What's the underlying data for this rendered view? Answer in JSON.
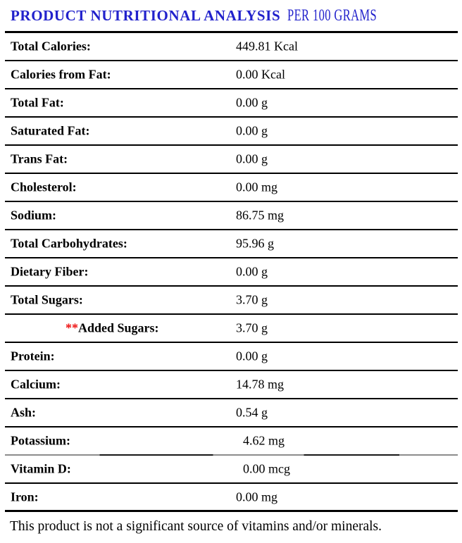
{
  "title": {
    "main": "PRODUCT NUTRITIONAL ANALYSIS",
    "suffix": "PER 100 GRAMS"
  },
  "colors": {
    "title_blue": "#2222cc",
    "asterisk_red": "#ee1111",
    "rule_black": "#000000",
    "rule_gray": "#8c8c8c"
  },
  "rows": [
    {
      "label": "Total Calories:",
      "value": "449.81 Kcal"
    },
    {
      "label": "Calories from Fat:",
      "value": "0.00 Kcal"
    },
    {
      "label": "Total Fat:",
      "value": "0.00 g"
    },
    {
      "label": "Saturated Fat:",
      "value": "0.00 g"
    },
    {
      "label": "Trans Fat:",
      "value": "0.00 g"
    },
    {
      "label": "Cholesterol:",
      "value": "0.00 mg"
    },
    {
      "label": "Sodium:",
      "value": "86.75 mg"
    },
    {
      "label": "Total Carbohydrates:",
      "value": "95.96 g"
    },
    {
      "label": "Dietary Fiber:",
      "value": "0.00 g"
    },
    {
      "label": "Total Sugars:",
      "value": "3.70 g"
    },
    {
      "label_prefix": "**",
      "label": "Added Sugars:",
      "value": "3.70 g",
      "indented": true
    },
    {
      "label": "Protein:",
      "value": "0.00 g"
    },
    {
      "label": "Calcium:",
      "value": "14.78 mg"
    },
    {
      "label": "Ash:",
      "value": "0.54 g"
    },
    {
      "label": "Potassium:",
      "value": "4.62 mg",
      "separator": "gray",
      "value_indent": true
    },
    {
      "label": "Vitamin D:",
      "value": "0.00 mcg",
      "value_indent": true
    },
    {
      "label": "Iron:",
      "value": "0.00 mg"
    }
  ],
  "footer": "This product is not a significant source of vitamins and/or minerals."
}
